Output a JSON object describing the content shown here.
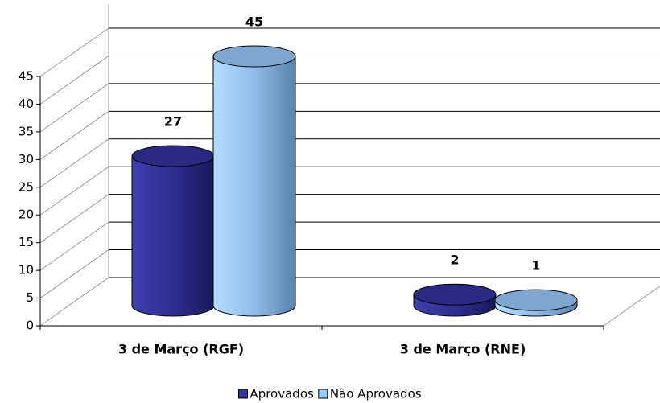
{
  "chart_data": {
    "type": "bar3d-cylinder",
    "categories": [
      "3 de Março (RGF)",
      "3 de Março (RNE)"
    ],
    "series": [
      {
        "name": "Aprovados",
        "color": "#333399",
        "values": [
          27,
          2
        ]
      },
      {
        "name": "Não Aprovados",
        "color": "#99ccff",
        "values": [
          45,
          1
        ]
      }
    ],
    "ylim": [
      0,
      45
    ],
    "yticks": [
      0,
      5,
      10,
      15,
      20,
      25,
      30,
      35,
      40,
      45
    ],
    "grid": true,
    "legend": "bottom"
  }
}
